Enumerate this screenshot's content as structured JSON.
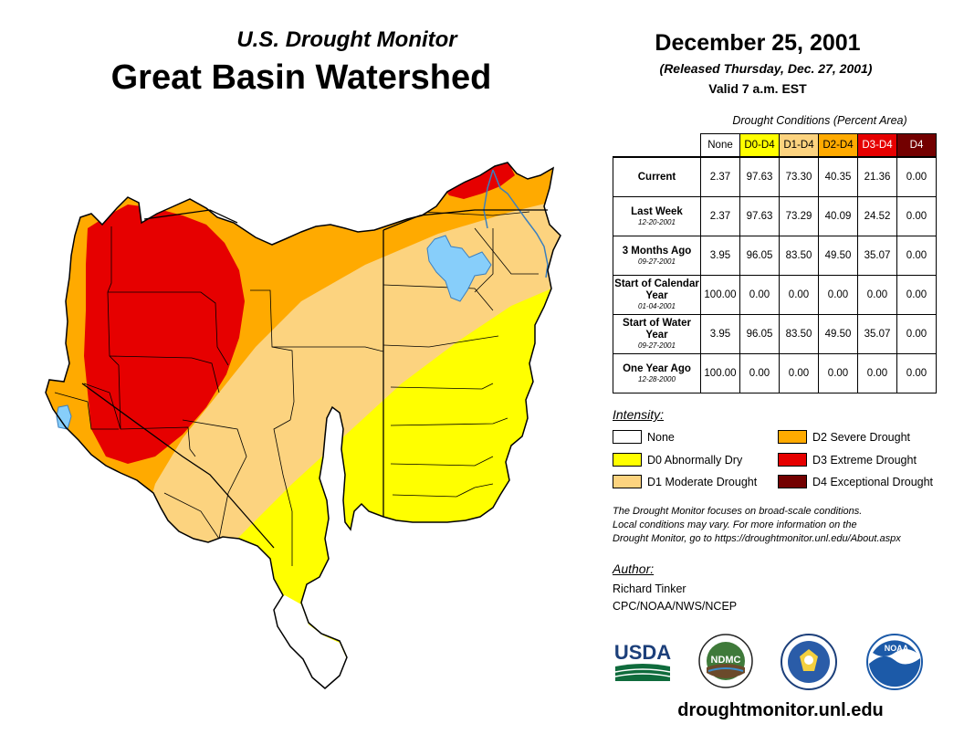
{
  "header": {
    "subtitle": "U.S. Drought Monitor",
    "title": "Great Basin Watershed",
    "date": "December 25, 2001",
    "released": "(Released Thursday, Dec. 27, 2001)",
    "valid": "Valid 7 a.m. EST"
  },
  "table": {
    "caption": "Drought Conditions (Percent Area)",
    "columns": [
      "None",
      "D0-D4",
      "D1-D4",
      "D2-D4",
      "D3-D4",
      "D4"
    ],
    "column_colors": [
      "#ffffff",
      "#ffff00",
      "#fcd37f",
      "#ffaa00",
      "#e60000",
      "#730000"
    ],
    "rows": [
      {
        "label": "Current",
        "sublabel": "",
        "values": [
          "2.37",
          "97.63",
          "73.30",
          "40.35",
          "21.36",
          "0.00"
        ]
      },
      {
        "label": "Last Week",
        "sublabel": "12-20-2001",
        "values": [
          "2.37",
          "97.63",
          "73.29",
          "40.09",
          "24.52",
          "0.00"
        ]
      },
      {
        "label": "3 Months Ago",
        "sublabel": "09-27-2001",
        "values": [
          "3.95",
          "96.05",
          "83.50",
          "49.50",
          "35.07",
          "0.00"
        ]
      },
      {
        "label": "Start of Calendar Year",
        "sublabel": "01-04-2001",
        "values": [
          "100.00",
          "0.00",
          "0.00",
          "0.00",
          "0.00",
          "0.00"
        ]
      },
      {
        "label": "Start of Water Year",
        "sublabel": "09-27-2001",
        "values": [
          "3.95",
          "96.05",
          "83.50",
          "49.50",
          "35.07",
          "0.00"
        ]
      },
      {
        "label": "One Year Ago",
        "sublabel": "12-28-2000",
        "values": [
          "100.00",
          "0.00",
          "0.00",
          "0.00",
          "0.00",
          "0.00"
        ]
      }
    ]
  },
  "legend": {
    "title": "Intensity:",
    "items": [
      {
        "label": "None",
        "color": "#ffffff"
      },
      {
        "label": "D0 Abnormally Dry",
        "color": "#ffff00"
      },
      {
        "label": "D1 Moderate Drought",
        "color": "#fcd37f"
      },
      {
        "label": "D2 Severe Drought",
        "color": "#ffaa00"
      },
      {
        "label": "D3 Extreme Drought",
        "color": "#e60000"
      },
      {
        "label": "D4 Exceptional Drought",
        "color": "#730000"
      }
    ]
  },
  "note": {
    "line1": "The Drought Monitor focuses on broad-scale conditions.",
    "line2": "Local conditions may vary. For more information on the",
    "line3": "Drought Monitor, go to https://droughtmonitor.unl.edu/About.aspx"
  },
  "author": {
    "title": "Author:",
    "name": "Richard Tinker",
    "org": "CPC/NOAA/NWS/NCEP"
  },
  "logos": {
    "usda": "USDA",
    "ndmc": "NDMC",
    "noaa": "NOAA"
  },
  "footer": {
    "url": "droughtmonitor.unl.edu"
  }
}
